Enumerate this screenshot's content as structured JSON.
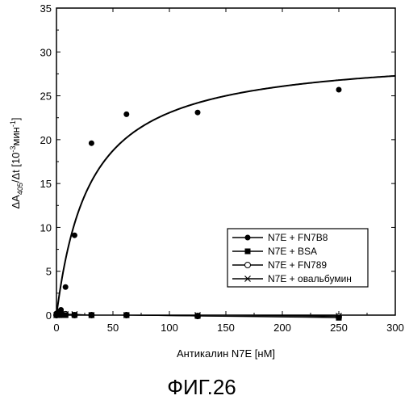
{
  "chart_data": {
    "type": "scatter",
    "title": "",
    "xlabel": "Антикалин N7E [нМ]",
    "ylabel_parts": {
      "delta_a": "ΔA",
      "a_sub": "405",
      "mid": "/Δt [10",
      "exp": "-3",
      "unit": "мин",
      "unit_exp": "-1",
      "close": "]"
    },
    "xlim": [
      0,
      300
    ],
    "ylim": [
      0,
      35
    ],
    "x_ticks": [
      "0",
      "50",
      "100",
      "150",
      "200",
      "250",
      "300"
    ],
    "y_ticks": [
      "0",
      "5",
      "10",
      "15",
      "20",
      "25",
      "30",
      "35"
    ],
    "grid": false,
    "legend_position": "bottom-right",
    "series": [
      {
        "name": "N7E + FN7B8",
        "marker": "filled-circle",
        "x": [
          0,
          2,
          4,
          8,
          16,
          31,
          62,
          125,
          250
        ],
        "y": [
          0.2,
          0.4,
          0.6,
          3.2,
          9.1,
          19.6,
          22.9,
          23.1,
          25.7
        ]
      },
      {
        "name": "N7E + BSA",
        "marker": "filled-square",
        "x": [
          0,
          2,
          4,
          8,
          16,
          31,
          62,
          125,
          250
        ],
        "y": [
          0,
          0,
          0,
          0,
          0,
          0,
          0,
          -0.1,
          -0.3
        ]
      },
      {
        "name": "N7E + FN789",
        "marker": "open-circle",
        "x": [
          0,
          2,
          4,
          8,
          16,
          31,
          62,
          125,
          250
        ],
        "y": [
          0,
          0.1,
          0.1,
          0.1,
          0,
          0,
          0,
          -0.1,
          -0.2
        ]
      },
      {
        "name": "N7E + овальбумин",
        "marker": "cross",
        "x": [
          0,
          2,
          4,
          8,
          16,
          31,
          62,
          125,
          250
        ],
        "y": [
          0,
          0,
          0.1,
          0.1,
          0.1,
          0,
          0,
          0,
          -0.1
        ]
      }
    ],
    "fit_curve": {
      "model": "hyperbolic",
      "of_series": "N7E + FN7B8",
      "vmax": 30,
      "kd": 30
    }
  },
  "figure_caption": "ФИГ.26"
}
